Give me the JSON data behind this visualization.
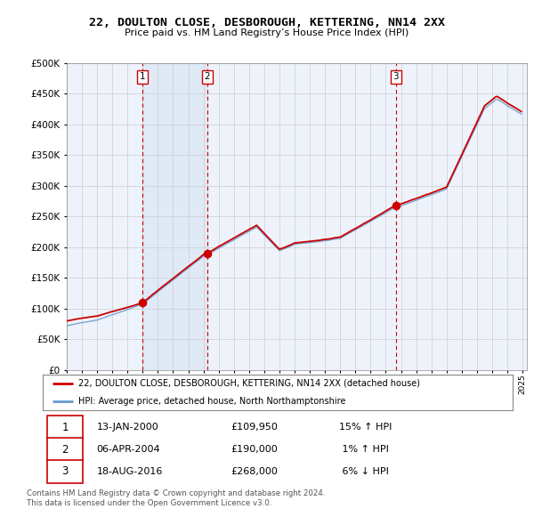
{
  "title": "22, DOULTON CLOSE, DESBOROUGH, KETTERING, NN14 2XX",
  "subtitle": "Price paid vs. HM Land Registry’s House Price Index (HPI)",
  "sale_dates": [
    "13-JAN-2000",
    "06-APR-2004",
    "18-AUG-2016"
  ],
  "sale_prices": [
    109950,
    190000,
    268000
  ],
  "sale_hpi_pct": [
    "15% ↑ HPI",
    "1% ↑ HPI",
    "6% ↓ HPI"
  ],
  "sale_labels": [
    "1",
    "2",
    "3"
  ],
  "legend_line1": "22, DOULTON CLOSE, DESBOROUGH, KETTERING, NN14 2XX (detached house)",
  "legend_line2": "HPI: Average price, detached house, North Northamptonshire",
  "footer1": "Contains HM Land Registry data © Crown copyright and database right 2024.",
  "footer2": "This data is licensed under the Open Government Licence v3.0.",
  "red_color": "#cc0000",
  "blue_color": "#6699cc",
  "bg_color": "#dce8f5",
  "grid_color": "#bbbbbb",
  "ylim": [
    0,
    500000
  ],
  "yticks": [
    0,
    50000,
    100000,
    150000,
    200000,
    250000,
    300000,
    350000,
    400000,
    450000,
    500000
  ]
}
